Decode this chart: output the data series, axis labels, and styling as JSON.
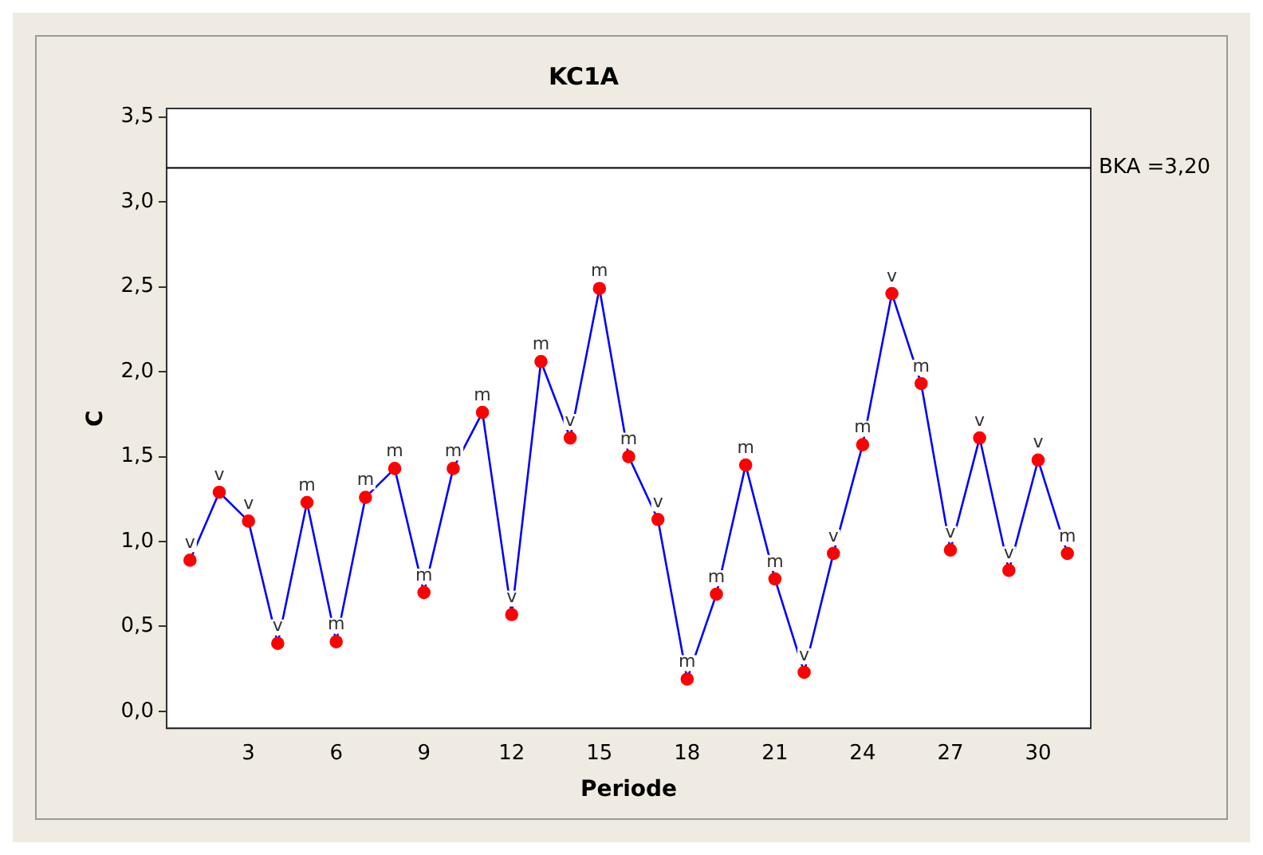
{
  "chart_data": {
    "type": "line",
    "title": "KC1A",
    "xlabel": "Periode",
    "ylabel": "C",
    "x": [
      1,
      2,
      3,
      4,
      5,
      6,
      7,
      8,
      9,
      10,
      11,
      12,
      13,
      14,
      15,
      16,
      17,
      18,
      19,
      20,
      21,
      22,
      23,
      24,
      25,
      26,
      27,
      28,
      29,
      30,
      31
    ],
    "series": [
      {
        "color": "#0000ff",
        "colors": [
          "#ff0000",
          "#ff0000",
          "#ff0000",
          "#ff0000",
          "#ff0000",
          "#ff0000",
          "#ff0000",
          "#ff0000",
          "#ff0000",
          "#ff0000",
          "#ff0000",
          "#ff0000",
          "#ff0000",
          "#ff0000",
          "#ff0000",
          "#ff0000",
          "#ff0000",
          "#ff0000",
          "#ff0000",
          "#ff0000",
          "#ff0000",
          "#ff0000",
          "#ff0000",
          "#ff0000",
          "#ff0000",
          "#ff0000",
          "#ff0000",
          "#ff0000",
          "#ff0000",
          "#ff0000",
          "#ff0000"
        ],
        "values": [
          0.89,
          1.29,
          1.12,
          0.4,
          1.23,
          0.41,
          1.26,
          1.43,
          0.7,
          1.43,
          1.76,
          0.57,
          2.06,
          1.61,
          2.49,
          1.5,
          1.13,
          0.19,
          0.69,
          1.45,
          0.78,
          0.23,
          0.93,
          1.57,
          2.46,
          1.93,
          0.95,
          1.61,
          0.83,
          1.48,
          0.93
        ]
      }
    ],
    "xlim": [
      0.2,
      31.8
    ],
    "xticks": [
      3,
      6,
      9,
      12,
      15,
      18,
      21,
      24,
      27,
      30
    ],
    "ylim": [
      -0.1,
      3.55
    ],
    "yticks": [
      {
        "value": 0,
        "label": "0,0"
      },
      {
        "value": 0.5,
        "label": "0,5"
      },
      {
        "value": 1,
        "label": "1,0"
      },
      {
        "value": 1.5,
        "label": "1,5"
      },
      {
        "value": 2,
        "label": "2,0"
      },
      {
        "value": 2.5,
        "label": "2,5"
      },
      {
        "value": 3,
        "label": "3,0"
      },
      {
        "value": 3.5,
        "label": "3,5"
      }
    ],
    "ref_lines": [
      {
        "axis": "y",
        "value": 3.2,
        "label": "BKA =3,20",
        "color": "#000000"
      }
    ],
    "annotations": [
      {
        "text": "v",
        "x": 1,
        "y": 0.89
      },
      {
        "text": "v",
        "x": 2,
        "y": 1.29
      },
      {
        "text": "v",
        "x": 3,
        "y": 1.12
      },
      {
        "text": "v",
        "x": 4,
        "y": 0.4
      },
      {
        "text": "m",
        "x": 5,
        "y": 1.23
      },
      {
        "text": "m",
        "x": 6,
        "y": 0.41
      },
      {
        "text": "m",
        "x": 7,
        "y": 1.26
      },
      {
        "text": "m",
        "x": 8,
        "y": 1.43
      },
      {
        "text": "m",
        "x": 9,
        "y": 0.7
      },
      {
        "text": "m",
        "x": 10,
        "y": 1.43
      },
      {
        "text": "m",
        "x": 11,
        "y": 1.76
      },
      {
        "text": "v",
        "x": 12,
        "y": 0.57
      },
      {
        "text": "m",
        "x": 13,
        "y": 2.06
      },
      {
        "text": "v",
        "x": 14,
        "y": 1.61
      },
      {
        "text": "m",
        "x": 15,
        "y": 2.49
      },
      {
        "text": "m",
        "x": 16,
        "y": 1.5
      },
      {
        "text": "v",
        "x": 17,
        "y": 1.13
      },
      {
        "text": "m",
        "x": 18,
        "y": 0.19
      },
      {
        "text": "m",
        "x": 19,
        "y": 0.69
      },
      {
        "text": "m",
        "x": 20,
        "y": 1.45
      },
      {
        "text": "m",
        "x": 21,
        "y": 0.78
      },
      {
        "text": "v",
        "x": 22,
        "y": 0.23
      },
      {
        "text": "v",
        "x": 23,
        "y": 0.93
      },
      {
        "text": "m",
        "x": 24,
        "y": 1.57
      },
      {
        "text": "v",
        "x": 25,
        "y": 2.46
      },
      {
        "text": "m",
        "x": 26,
        "y": 1.93
      },
      {
        "text": "v",
        "x": 27,
        "y": 0.95
      },
      {
        "text": "v",
        "x": 28,
        "y": 1.61
      },
      {
        "text": "v",
        "x": 29,
        "y": 0.83
      },
      {
        "text": "v",
        "x": 30,
        "y": 1.48
      },
      {
        "text": "m",
        "x": 31,
        "y": 0.93
      }
    ],
    "marker": "circle",
    "line_style": "solid",
    "grid": false,
    "legend": false
  }
}
